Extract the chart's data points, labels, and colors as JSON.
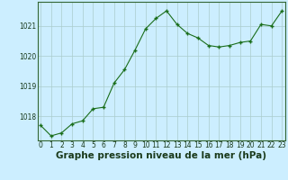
{
  "x": [
    0,
    1,
    2,
    3,
    4,
    5,
    6,
    7,
    8,
    9,
    10,
    11,
    12,
    13,
    14,
    15,
    16,
    17,
    18,
    19,
    20,
    21,
    22,
    23
  ],
  "y": [
    1017.7,
    1017.35,
    1017.45,
    1017.75,
    1017.85,
    1018.25,
    1018.3,
    1019.1,
    1019.55,
    1020.2,
    1020.9,
    1021.25,
    1021.5,
    1021.05,
    1020.75,
    1020.6,
    1020.35,
    1020.3,
    1020.35,
    1020.45,
    1020.5,
    1021.05,
    1021.0,
    1021.5
  ],
  "line_color": "#1a6e1a",
  "marker": "P",
  "marker_size": 2.5,
  "bg_color": "#cceeff",
  "grid_color": "#aacccc",
  "xlabel": "Graphe pression niveau de la mer (hPa)",
  "xlabel_fontsize": 7.5,
  "ylim": [
    1017.2,
    1021.8
  ],
  "yticks": [
    1018,
    1019,
    1020,
    1021
  ],
  "xticks": [
    0,
    1,
    2,
    3,
    4,
    5,
    6,
    7,
    8,
    9,
    10,
    11,
    12,
    13,
    14,
    15,
    16,
    17,
    18,
    19,
    20,
    21,
    22,
    23
  ],
  "tick_fontsize": 5.5,
  "spine_color": "#336633"
}
